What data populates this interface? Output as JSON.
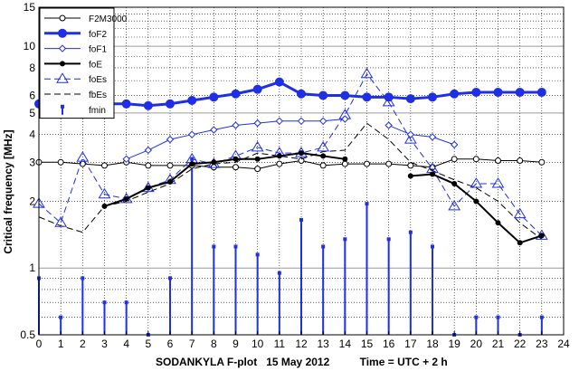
{
  "chart_data": {
    "type": "line",
    "title": "",
    "ylabel": "Critical frequency [MHz]",
    "xlabel": "SODANKYLA F-plot   15 May 2012          Time = UTC + 2 h",
    "y_scale": "log",
    "xlim": [
      0,
      24
    ],
    "ylim": [
      0.5,
      15
    ],
    "x_ticks": [
      0,
      1,
      2,
      3,
      4,
      5,
      6,
      7,
      8,
      9,
      10,
      11,
      12,
      13,
      14,
      15,
      16,
      17,
      18,
      19,
      20,
      21,
      22,
      23,
      24
    ],
    "y_tick_labels": [
      {
        "value": 0.5,
        "label": "0.5"
      },
      {
        "value": 1,
        "label": "1"
      },
      {
        "value": 2,
        "label": "2"
      },
      {
        "value": 3,
        "label": "3"
      },
      {
        "value": 4,
        "label": "4"
      },
      {
        "value": 5,
        "label": "5"
      },
      {
        "value": 6,
        "label": "6"
      },
      {
        "value": 8,
        "label": "8"
      },
      {
        "value": 10,
        "label": "10"
      },
      {
        "value": 15,
        "label": "15"
      }
    ],
    "grid": true,
    "legend_position": "top-left",
    "series": [
      {
        "name": "F2M3000",
        "color": "#000000",
        "line": "solid",
        "width": 1,
        "marker": "circle-open",
        "x": [
          0,
          1,
          2,
          3,
          4,
          5,
          6,
          7,
          8,
          9,
          10,
          11,
          12,
          13,
          14,
          15,
          16,
          17,
          18,
          19,
          20,
          21,
          22,
          23
        ],
        "y": [
          3.0,
          3.0,
          2.95,
          2.9,
          3.0,
          2.9,
          2.9,
          2.9,
          2.85,
          2.85,
          2.8,
          2.95,
          3.05,
          2.9,
          2.95,
          2.95,
          2.95,
          2.9,
          2.85,
          3.1,
          3.1,
          3.05,
          3.05,
          3.0
        ]
      },
      {
        "name": "foF2",
        "color": "#1f2fe6",
        "line": "solid",
        "width": 3,
        "marker": "circle-filled-large",
        "x": [
          0,
          1,
          2,
          3,
          4,
          5,
          6,
          7,
          8,
          9,
          10,
          11,
          12,
          13,
          14,
          15,
          16,
          17,
          18,
          19,
          20,
          21,
          22,
          23
        ],
        "y": [
          5.5,
          5.5,
          5.6,
          5.5,
          5.5,
          5.4,
          5.5,
          5.7,
          5.9,
          6.1,
          6.4,
          6.9,
          6.1,
          6.0,
          6.0,
          5.9,
          5.9,
          5.8,
          5.9,
          6.1,
          6.2,
          6.2,
          6.2,
          6.2
        ]
      },
      {
        "name": "foF1",
        "color": "#1f2fe6",
        "line": "solid",
        "width": 1,
        "marker": "diamond-open",
        "x": [
          4,
          5,
          6,
          7,
          8,
          9,
          10,
          11,
          12,
          13,
          14,
          null,
          16,
          17,
          18,
          19
        ],
        "y": [
          3.1,
          3.4,
          3.8,
          4.0,
          4.2,
          4.4,
          4.5,
          4.6,
          4.6,
          4.6,
          4.7,
          null,
          4.4,
          4.0,
          3.9,
          3.6
        ]
      },
      {
        "name": "foE",
        "color": "#000000",
        "line": "solid",
        "width": 2,
        "marker": "circle-filled-small",
        "x": [
          3,
          4,
          5,
          6,
          7,
          8,
          9,
          10,
          11,
          12,
          13,
          14,
          null,
          17,
          18,
          19,
          20,
          21,
          22,
          23
        ],
        "y": [
          1.9,
          2.05,
          2.3,
          2.45,
          2.95,
          3.0,
          3.1,
          3.1,
          3.2,
          3.3,
          3.2,
          3.1,
          null,
          2.6,
          2.65,
          2.4,
          2.0,
          1.6,
          1.3,
          1.4
        ]
      },
      {
        "name": "foEs",
        "color": "#1f2fe6",
        "line": "dashed",
        "width": 1,
        "marker": "triangle-open",
        "x": [
          0,
          1,
          2,
          3,
          4,
          5,
          6,
          7,
          8,
          9,
          10,
          11,
          12,
          13,
          14,
          15,
          16,
          17,
          18,
          19,
          20,
          21,
          22,
          23
        ],
        "y": [
          1.95,
          1.6,
          3.15,
          2.15,
          2.05,
          2.3,
          2.5,
          3.1,
          2.95,
          3.2,
          3.5,
          3.3,
          3.3,
          3.5,
          4.9,
          7.5,
          5.6,
          3.8,
          2.8,
          1.9,
          2.4,
          2.4,
          1.75,
          1.4
        ]
      },
      {
        "name": "fbEs",
        "color": "#000000",
        "line": "dashed",
        "width": 1,
        "marker": "none",
        "x": [
          0,
          1,
          2,
          3,
          4,
          5,
          6,
          7,
          8,
          9,
          10,
          11,
          12,
          13,
          14,
          15,
          16,
          17,
          18,
          19,
          20,
          21,
          22,
          23
        ],
        "y": [
          1.7,
          1.55,
          1.45,
          1.9,
          2.0,
          2.2,
          2.4,
          2.8,
          2.95,
          3.0,
          3.3,
          3.2,
          3.1,
          3.35,
          3.4,
          4.5,
          3.8,
          3.0,
          2.75,
          2.5,
          2.3,
          2.0,
          1.6,
          1.35
        ]
      },
      {
        "name": "fmin",
        "color": "#1f2fe6",
        "line": "stem",
        "width": 2,
        "marker": "square-filled-small",
        "x": [
          0,
          1,
          2,
          3,
          4,
          5,
          6,
          7,
          8,
          9,
          10,
          11,
          12,
          13,
          14,
          15,
          16,
          17,
          18,
          19,
          20,
          21,
          22,
          23
        ],
        "y": [
          0.9,
          0.6,
          0.9,
          0.7,
          0.7,
          0.5,
          0.9,
          3.1,
          1.25,
          1.25,
          1.15,
          0.95,
          1.65,
          1.25,
          1.35,
          1.95,
          1.35,
          1.45,
          1.25,
          0.5,
          0.6,
          0.6,
          0.5,
          0.6
        ]
      }
    ]
  }
}
